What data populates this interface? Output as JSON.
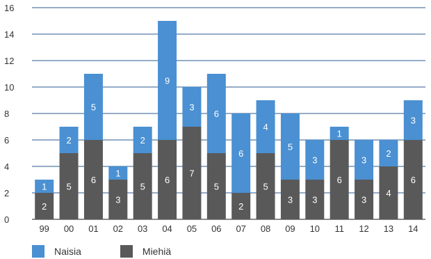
{
  "chart_data": {
    "type": "bar",
    "stacked": true,
    "categories": [
      "99",
      "00",
      "01",
      "02",
      "03",
      "04",
      "05",
      "06",
      "07",
      "08",
      "09",
      "10",
      "11",
      "12",
      "13",
      "14"
    ],
    "series": [
      {
        "name": "Miehiä",
        "color": "#595959",
        "values": [
          2,
          5,
          6,
          3,
          5,
          6,
          7,
          5,
          2,
          5,
          3,
          3,
          6,
          3,
          4,
          6
        ]
      },
      {
        "name": "Naisia",
        "color": "#4a90d2",
        "values": [
          1,
          2,
          5,
          1,
          2,
          9,
          3,
          6,
          6,
          4,
          5,
          3,
          1,
          3,
          2,
          3
        ]
      }
    ],
    "ylim": [
      0,
      16
    ],
    "yticks": [
      0,
      2,
      4,
      6,
      8,
      10,
      12,
      14,
      16
    ],
    "grid": true,
    "legend_position": "bottom-left",
    "title": "",
    "xlabel": "",
    "ylabel": ""
  },
  "legend": {
    "items": [
      {
        "label": "Naisia",
        "color": "#4a90d2"
      },
      {
        "label": "Miehiä",
        "color": "#595959"
      }
    ]
  }
}
